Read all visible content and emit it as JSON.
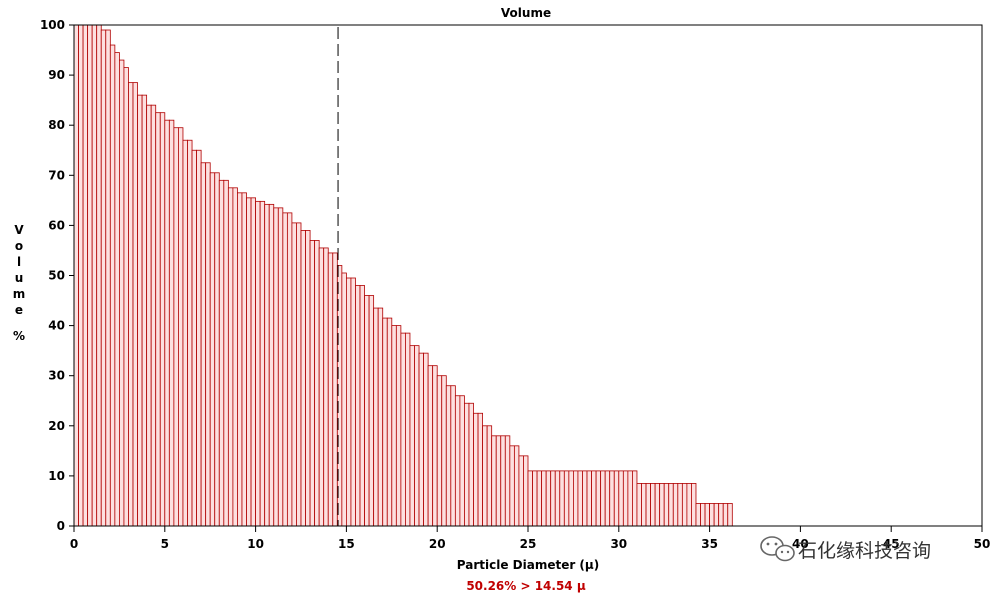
{
  "chart_data": {
    "type": "bar",
    "title": "Volume",
    "xlabel": "Particle Diameter (µ)",
    "ylabel": "Volume %",
    "ylabel_chars": [
      "V",
      "o",
      "l",
      "u",
      "m",
      "e",
      "",
      "%"
    ],
    "xlim": [
      0,
      50
    ],
    "ylim": [
      0,
      100
    ],
    "xticks": [
      0,
      5,
      10,
      15,
      20,
      25,
      30,
      35,
      40,
      45,
      50
    ],
    "yticks": [
      0,
      10,
      20,
      30,
      40,
      50,
      60,
      70,
      80,
      90,
      100
    ],
    "marker_x": 14.54,
    "annotation": "50.26% > 14.54 µ",
    "bin_width": 0.25,
    "series": [
      {
        "color": "#b00000",
        "fill": "#fde0e0",
        "points": [
          [
            0.0,
            100
          ],
          [
            1.5,
            99
          ],
          [
            1.8,
            97
          ],
          [
            2.0,
            96
          ],
          [
            2.2,
            94.5
          ],
          [
            2.4,
            93
          ],
          [
            2.6,
            91.5
          ],
          [
            2.8,
            90
          ],
          [
            3.0,
            88.5
          ],
          [
            3.5,
            86
          ],
          [
            4.0,
            84
          ],
          [
            4.5,
            82.5
          ],
          [
            5.0,
            81
          ],
          [
            5.5,
            79.5
          ],
          [
            6.0,
            77
          ],
          [
            6.5,
            75
          ],
          [
            7.0,
            72.5
          ],
          [
            7.5,
            70.5
          ],
          [
            8.0,
            69
          ],
          [
            8.5,
            67.5
          ],
          [
            9.0,
            66.5
          ],
          [
            9.5,
            65.5
          ],
          [
            10.0,
            64.8
          ],
          [
            10.5,
            64.2
          ],
          [
            11.0,
            63.5
          ],
          [
            11.5,
            62.5
          ],
          [
            12.0,
            60.5
          ],
          [
            12.5,
            59
          ],
          [
            13.0,
            57
          ],
          [
            13.5,
            55.5
          ],
          [
            14.0,
            54.5
          ],
          [
            14.5,
            52
          ],
          [
            14.75,
            50.5
          ],
          [
            15.0,
            49.5
          ],
          [
            15.5,
            48
          ],
          [
            16.0,
            46
          ],
          [
            16.5,
            43.5
          ],
          [
            17.0,
            41.5
          ],
          [
            17.5,
            40
          ],
          [
            18.0,
            38.5
          ],
          [
            18.5,
            36
          ],
          [
            19.0,
            34.5
          ],
          [
            19.5,
            32
          ],
          [
            20.0,
            30
          ],
          [
            20.5,
            28
          ],
          [
            21.0,
            26
          ],
          [
            21.5,
            24.5
          ],
          [
            22.0,
            22.5
          ],
          [
            22.5,
            20
          ],
          [
            23.0,
            18
          ],
          [
            24.0,
            16
          ],
          [
            24.5,
            14
          ],
          [
            25.0,
            11
          ],
          [
            31.0,
            8.5
          ],
          [
            34.25,
            4.5
          ]
        ],
        "end_x": 36.25
      }
    ],
    "legend": "none",
    "grid": false
  },
  "watermark": {
    "icon": "wechat-icon",
    "text": "石化缘科技咨询"
  }
}
